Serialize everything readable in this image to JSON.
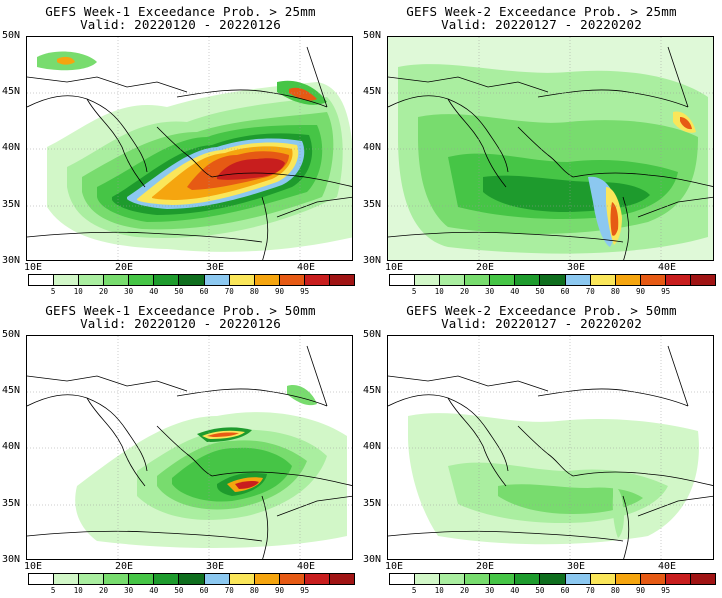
{
  "colorbar": {
    "ticks": [
      "5",
      "10",
      "20",
      "30",
      "40",
      "50",
      "60",
      "70",
      "80",
      "90",
      "95"
    ],
    "colors": [
      "#ffffff",
      "#d2f7c8",
      "#aaeea0",
      "#78dc6e",
      "#46c546",
      "#1e9b2d",
      "#0f6e1e",
      "#8cc8f0",
      "#fae65a",
      "#f5a50f",
      "#e65a14",
      "#c81e1e",
      "#a01414"
    ]
  },
  "axes": {
    "lat_labels": [
      "50N",
      "45N",
      "40N",
      "35N",
      "30N"
    ],
    "lon_labels": [
      "10E",
      "20E",
      "30E",
      "40E"
    ]
  },
  "panels": [
    {
      "title": "GEFS Week-1 Exceedance Prob. > 25mm",
      "valid": "Valid: 20220120 - 20220126",
      "intensity": "high"
    },
    {
      "title": "GEFS Week-2 Exceedance Prob. > 25mm",
      "valid": "Valid: 20220127 - 20220202",
      "intensity": "moderate"
    },
    {
      "title": "GEFS Week-1 Exceedance Prob. > 50mm",
      "valid": "Valid: 20220120 - 20220126",
      "intensity": "medium"
    },
    {
      "title": "GEFS Week-2 Exceedance Prob. > 50mm",
      "valid": "Valid: 20220127 - 20220202",
      "intensity": "low"
    }
  ]
}
